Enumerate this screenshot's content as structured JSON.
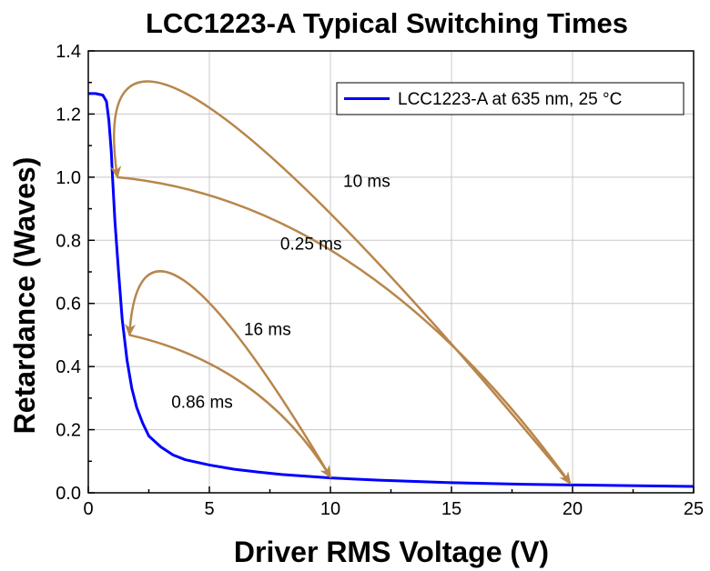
{
  "chart_data": {
    "type": "line",
    "title": "LCC1223-A Typical Switching Times",
    "xlabel": "Driver RMS Voltage (V)",
    "ylabel": "Retardance (Waves)",
    "xlim": [
      0,
      25
    ],
    "ylim": [
      0,
      1.4
    ],
    "x_ticks": [
      "0",
      "5",
      "10",
      "15",
      "20",
      "25"
    ],
    "y_ticks": [
      "0.0",
      "0.2",
      "0.4",
      "0.6",
      "0.8",
      "1.0",
      "1.2",
      "1.4"
    ],
    "grid": true,
    "legend_position": "top-right",
    "series": [
      {
        "name": "LCC1223-A at 635 nm, 25 °C",
        "color": "#0000ff",
        "x": [
          0,
          0.3,
          0.6,
          0.75,
          0.85,
          0.95,
          1.0,
          1.1,
          1.25,
          1.4,
          1.6,
          1.8,
          2.0,
          2.25,
          2.5,
          3.0,
          3.5,
          4.0,
          5.0,
          6.0,
          7.0,
          8.0,
          10.0,
          12.0,
          15.0,
          18.0,
          20.0,
          22.0,
          25.0
        ],
        "y": [
          1.265,
          1.265,
          1.26,
          1.24,
          1.18,
          1.08,
          1.0,
          0.86,
          0.7,
          0.55,
          0.42,
          0.33,
          0.27,
          0.22,
          0.18,
          0.145,
          0.12,
          0.105,
          0.088,
          0.075,
          0.066,
          0.058,
          0.047,
          0.04,
          0.032,
          0.027,
          0.025,
          0.023,
          0.02
        ]
      }
    ],
    "annotations": [
      {
        "text": "10 ms",
        "color": "#b8864b",
        "from": [
          19.9,
          0.03
        ],
        "to": [
          1.2,
          1.0
        ],
        "via": [
          5.0,
          1.22
        ],
        "label_at": [
          11.5,
          0.97
        ]
      },
      {
        "text": "0.25 ms",
        "color": "#b8864b",
        "from": [
          1.2,
          1.0
        ],
        "to": [
          19.9,
          0.03
        ],
        "via": [
          11.0,
          0.72
        ],
        "label_at": [
          9.2,
          0.77
        ]
      },
      {
        "text": "16 ms",
        "color": "#b8864b",
        "from": [
          10.0,
          0.05
        ],
        "to": [
          1.7,
          0.5
        ],
        "via": [
          4.0,
          0.67
        ],
        "label_at": [
          7.4,
          0.5
        ]
      },
      {
        "text": "0.86 ms",
        "color": "#b8864b",
        "from": [
          1.7,
          0.5
        ],
        "to": [
          10.0,
          0.05
        ],
        "via": [
          6.5,
          0.34
        ],
        "label_at": [
          4.7,
          0.27
        ]
      }
    ]
  }
}
